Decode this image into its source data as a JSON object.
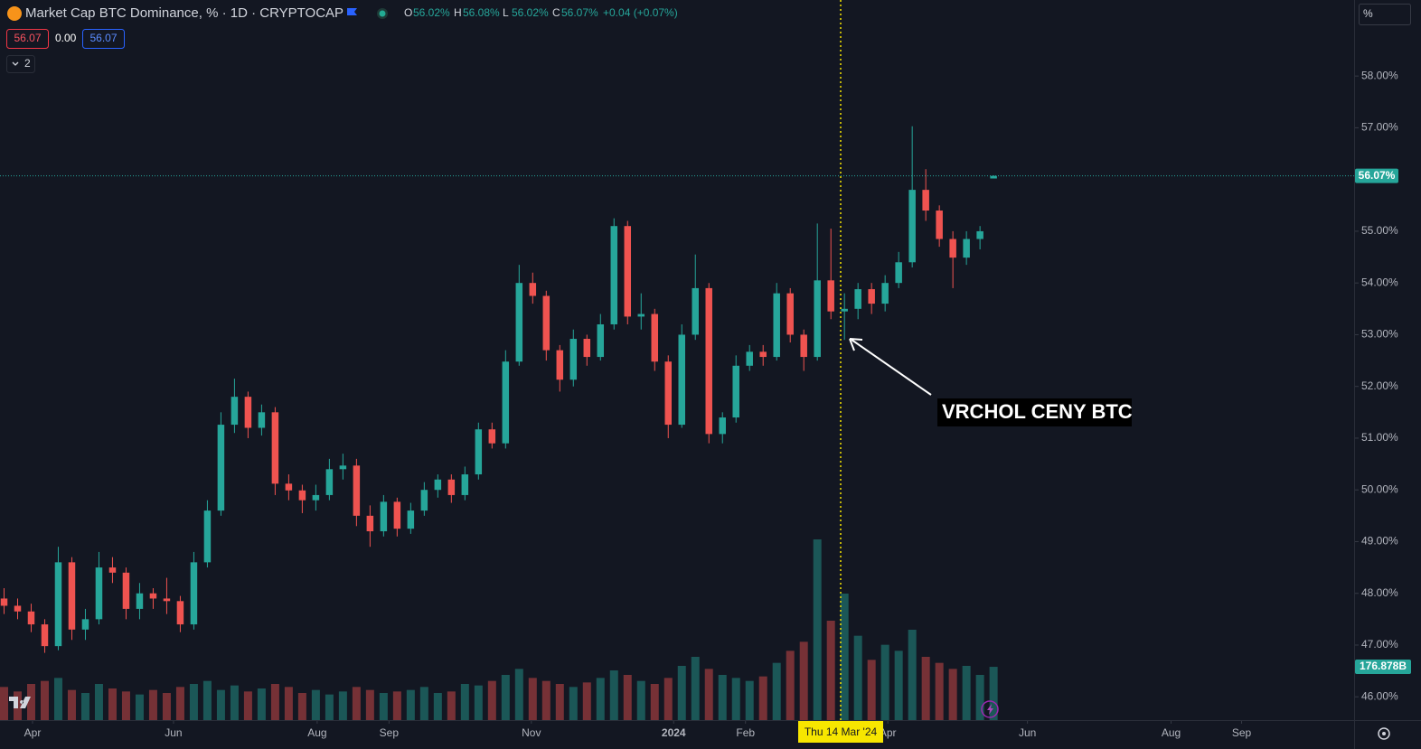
{
  "header": {
    "symbol_title": "Market Cap BTC Dominance, % · 1D · CRYPTOCAP",
    "ohlc": [
      {
        "key": "O",
        "value": "56.02%"
      },
      {
        "key": "H",
        "value": "56.08%"
      },
      {
        "key": "L",
        "value": "56.02%"
      },
      {
        "key": "C",
        "value": "56.07%"
      }
    ],
    "change": "+0.04 (+0.07%)",
    "badges": [
      "56.07",
      "0.00",
      "56.07"
    ],
    "indicators_count": "2",
    "scale_unit": "%"
  },
  "chart_data": {
    "type": "candlestick",
    "up_color": "#26a69a",
    "down_color": "#ef5350",
    "candles": [
      [
        47.9,
        48.1,
        47.6,
        47.76
      ],
      [
        47.76,
        47.9,
        47.5,
        47.65
      ],
      [
        47.65,
        47.8,
        47.25,
        47.4
      ],
      [
        47.4,
        47.5,
        46.85,
        46.98
      ],
      [
        46.98,
        48.9,
        46.9,
        48.6
      ],
      [
        48.6,
        48.7,
        47.1,
        47.3
      ],
      [
        47.3,
        47.7,
        47.1,
        47.5
      ],
      [
        47.5,
        48.8,
        47.4,
        48.5
      ],
      [
        48.5,
        48.7,
        48.2,
        48.4
      ],
      [
        48.4,
        48.5,
        47.5,
        47.7
      ],
      [
        47.7,
        48.2,
        47.5,
        48.0
      ],
      [
        48.0,
        48.1,
        47.7,
        47.9
      ],
      [
        47.9,
        48.3,
        47.6,
        47.85
      ],
      [
        47.85,
        47.95,
        47.25,
        47.4
      ],
      [
        47.4,
        48.8,
        47.3,
        48.6
      ],
      [
        48.6,
        49.8,
        48.5,
        49.6
      ],
      [
        49.6,
        51.5,
        49.5,
        51.26
      ],
      [
        51.26,
        52.15,
        51.1,
        51.8
      ],
      [
        51.8,
        51.9,
        51.0,
        51.2
      ],
      [
        51.2,
        51.65,
        51.05,
        51.5
      ],
      [
        51.5,
        51.6,
        49.9,
        50.12
      ],
      [
        50.12,
        50.3,
        49.8,
        49.99
      ],
      [
        49.99,
        50.1,
        49.55,
        49.8
      ],
      [
        49.8,
        50.1,
        49.6,
        49.9
      ],
      [
        49.9,
        50.6,
        49.8,
        50.4
      ],
      [
        50.4,
        50.7,
        50.2,
        50.47
      ],
      [
        50.47,
        50.6,
        49.3,
        49.5
      ],
      [
        49.5,
        49.7,
        48.9,
        49.2
      ],
      [
        49.2,
        49.9,
        49.1,
        49.77
      ],
      [
        49.77,
        49.85,
        49.1,
        49.25
      ],
      [
        49.25,
        49.75,
        49.15,
        49.6
      ],
      [
        49.6,
        50.15,
        49.5,
        50.0
      ],
      [
        50.0,
        50.3,
        49.85,
        50.2
      ],
      [
        50.2,
        50.3,
        49.75,
        49.9
      ],
      [
        49.9,
        50.45,
        49.8,
        50.3
      ],
      [
        50.3,
        51.3,
        50.2,
        51.17
      ],
      [
        51.17,
        51.3,
        50.8,
        50.9
      ],
      [
        50.9,
        52.7,
        50.8,
        52.48
      ],
      [
        52.48,
        54.35,
        52.4,
        54.0
      ],
      [
        54.0,
        54.2,
        53.6,
        53.75
      ],
      [
        53.75,
        53.85,
        52.5,
        52.7
      ],
      [
        52.7,
        52.8,
        51.9,
        52.13
      ],
      [
        52.13,
        53.1,
        52.0,
        52.92
      ],
      [
        52.92,
        53.0,
        52.4,
        52.57
      ],
      [
        52.57,
        53.4,
        52.5,
        53.2
      ],
      [
        53.2,
        55.25,
        53.1,
        55.1
      ],
      [
        55.1,
        55.2,
        53.2,
        53.35
      ],
      [
        53.35,
        53.8,
        53.1,
        53.4
      ],
      [
        53.4,
        53.5,
        52.3,
        52.48
      ],
      [
        52.48,
        52.6,
        51.0,
        51.26
      ],
      [
        51.26,
        53.2,
        51.2,
        53.0
      ],
      [
        53.0,
        54.55,
        52.9,
        53.9
      ],
      [
        53.9,
        54.0,
        50.9,
        51.08
      ],
      [
        51.08,
        51.5,
        50.9,
        51.4
      ],
      [
        51.4,
        52.6,
        51.3,
        52.4
      ],
      [
        52.4,
        52.8,
        52.3,
        52.67
      ],
      [
        52.67,
        52.8,
        52.4,
        52.57
      ],
      [
        52.57,
        54.0,
        52.5,
        53.8
      ],
      [
        53.8,
        53.9,
        52.85,
        53.0
      ],
      [
        53.0,
        53.1,
        52.3,
        52.57
      ],
      [
        52.57,
        55.15,
        52.5,
        54.05
      ],
      [
        54.05,
        55.05,
        53.3,
        53.45
      ],
      [
        53.45,
        53.8,
        52.9,
        53.5
      ],
      [
        53.5,
        54.0,
        53.3,
        53.88
      ],
      [
        53.88,
        54.0,
        53.4,
        53.6
      ],
      [
        53.6,
        54.15,
        53.45,
        54.0
      ],
      [
        54.0,
        54.6,
        53.9,
        54.4
      ],
      [
        54.4,
        57.03,
        54.3,
        55.8
      ],
      [
        55.8,
        56.2,
        55.2,
        55.4
      ],
      [
        55.4,
        55.5,
        54.7,
        54.85
      ],
      [
        54.85,
        55.0,
        53.9,
        54.49
      ],
      [
        54.49,
        55.0,
        54.35,
        54.85
      ],
      [
        54.85,
        55.1,
        54.65,
        55.0
      ],
      [
        56.02,
        56.08,
        56.02,
        56.07
      ]
    ],
    "volumes": [
      110,
      95,
      120,
      130,
      140,
      100,
      90,
      120,
      105,
      95,
      85,
      100,
      90,
      110,
      120,
      130,
      100,
      115,
      95,
      105,
      120,
      110,
      90,
      100,
      85,
      95,
      110,
      100,
      90,
      95,
      100,
      110,
      90,
      95,
      120,
      115,
      130,
      150,
      170,
      140,
      130,
      120,
      110,
      125,
      140,
      165,
      150,
      130,
      120,
      140,
      180,
      210,
      170,
      150,
      140,
      130,
      145,
      190,
      230,
      260,
      600,
      330,
      420,
      280,
      200,
      250,
      230,
      300,
      210,
      190,
      170,
      180,
      150,
      176.878
    ],
    "volume_ylim": [
      0,
      600
    ],
    "last_volume_label": "176.878B",
    "last_price_label": "56.07%",
    "xlim": [
      -0.3,
      99.6
    ],
    "xticks": [
      {
        "value": 2.1,
        "label": "Apr"
      },
      {
        "value": 12.5,
        "label": "Jun"
      },
      {
        "value": 23.1,
        "label": "Aug"
      },
      {
        "value": 28.4,
        "label": "Sep"
      },
      {
        "value": 38.9,
        "label": "Nov"
      },
      {
        "value": 49.4,
        "label": "2024"
      },
      {
        "value": 54.7,
        "label": "Feb"
      },
      {
        "value": 65.2,
        "label": "Apr"
      },
      {
        "value": 75.5,
        "label": "Jun"
      },
      {
        "value": 86.1,
        "label": "Aug"
      },
      {
        "value": 91.3,
        "label": "Sep"
      }
    ],
    "ylim": [
      45.55,
      59.47
    ],
    "yticks": [
      {
        "value": 46,
        "label": "46.00%"
      },
      {
        "value": 47,
        "label": "47.00%"
      },
      {
        "value": 48,
        "label": "48.00%"
      },
      {
        "value": 49,
        "label": "49.00%"
      },
      {
        "value": 50,
        "label": "50.00%"
      },
      {
        "value": 51,
        "label": "51.00%"
      },
      {
        "value": 52,
        "label": "52.00%"
      },
      {
        "value": 53,
        "label": "53.00%"
      },
      {
        "value": 54,
        "label": "54.00%"
      },
      {
        "value": 55,
        "label": "55.00%"
      },
      {
        "value": 56,
        "label": "56.00%"
      },
      {
        "value": 57,
        "label": "57.00%"
      },
      {
        "value": 58,
        "label": "58.00%"
      }
    ],
    "grid": false,
    "crosshair_label": "Thu 14 Mar '24",
    "annotation": "VRCHOL CENY BTC"
  }
}
